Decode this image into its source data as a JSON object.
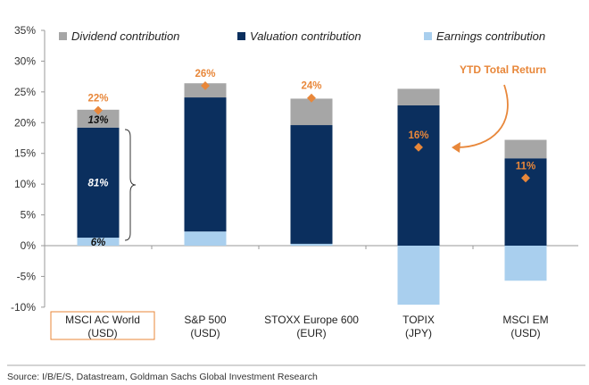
{
  "chart_data": {
    "type": "bar",
    "stacked": true,
    "title": "",
    "xlabel": "",
    "ylabel": "",
    "ylim": [
      -10,
      35
    ],
    "yticks": [
      "-10%",
      "-5%",
      "0%",
      "5%",
      "10%",
      "15%",
      "20%",
      "25%",
      "30%",
      "35%"
    ],
    "ytick_values": [
      -10,
      -5,
      0,
      5,
      10,
      15,
      20,
      25,
      30,
      35
    ],
    "categories": [
      {
        "line1": "MSCI AC World",
        "line2": "(USD)",
        "highlighted": true
      },
      {
        "line1": "S&P 500",
        "line2": "(USD)",
        "highlighted": false
      },
      {
        "line1": "STOXX Europe 600",
        "line2": "(EUR)",
        "highlighted": false
      },
      {
        "line1": "TOPIX",
        "line2": "(JPY)",
        "highlighted": false
      },
      {
        "line1": "MSCI EM",
        "line2": "(USD)",
        "highlighted": false
      }
    ],
    "series": [
      {
        "name": "Earnings contribution",
        "color": "#a9cfee",
        "values": [
          1.3,
          2.3,
          0.3,
          -9.6,
          -5.7
        ]
      },
      {
        "name": "Valuation contribution",
        "color": "#0b2f5e",
        "values": [
          17.9,
          21.8,
          19.3,
          22.8,
          14.2
        ]
      },
      {
        "name": "Dividend contribution",
        "color": "#a6a6a6",
        "values": [
          2.9,
          2.3,
          4.3,
          2.7,
          3.0
        ]
      }
    ],
    "legend_order": [
      "Dividend contribution",
      "Valuation contribution",
      "Earnings contribution"
    ],
    "legend_position": "top",
    "total_return": {
      "name": "YTD Total Return",
      "color": "#e8873a",
      "values": [
        22,
        26,
        24,
        16,
        11
      ],
      "labels": [
        "22%",
        "26%",
        "24%",
        "16%",
        "11%"
      ]
    },
    "segment_labels": {
      "category_index": 0,
      "dividend": "13%",
      "valuation": "81%",
      "earnings": "6%"
    },
    "annotation": "YTD Total Return",
    "source": "Source: I/B/E/S, Datastream, Goldman Sachs Global Investment Research"
  }
}
